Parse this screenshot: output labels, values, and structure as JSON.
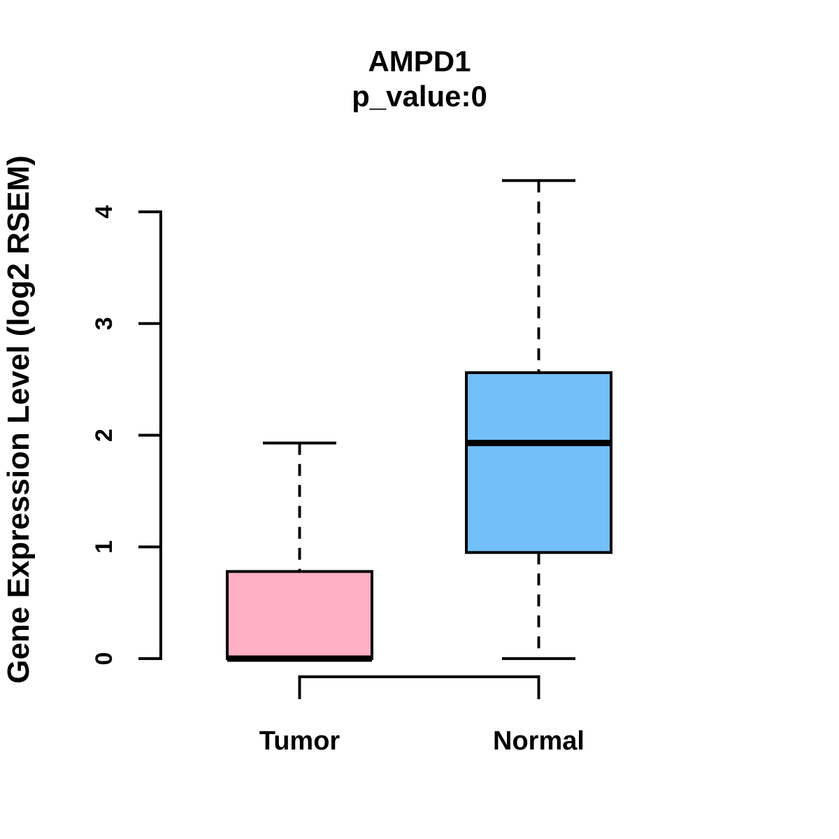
{
  "page": {
    "background": "#FFFFFF",
    "text_color": "#000000"
  },
  "chart_data": {
    "type": "boxplot",
    "title": "AMPD1",
    "subtitle": "p_value:0",
    "ylabel": "Gene Expression Level (log2 RSEM)",
    "xlabel": "",
    "categories": [
      "Tumor",
      "Normal"
    ],
    "yticks": [
      0,
      1,
      2,
      3,
      4
    ],
    "ylim": [
      0,
      4.3
    ],
    "grid": false,
    "legend": "none",
    "box_border_color": "#000000",
    "series": [
      {
        "name": "Tumor",
        "color": "#FFB0C4",
        "lower_whisker": 0,
        "q1": 0,
        "median": 0,
        "q3": 0.78,
        "upper_whisker": 1.93,
        "outliers": []
      },
      {
        "name": "Normal",
        "color": "#73BFFA",
        "lower_whisker": 0,
        "q1": 0.95,
        "median": 1.93,
        "q3": 2.56,
        "upper_whisker": 4.28,
        "outliers": []
      }
    ]
  }
}
